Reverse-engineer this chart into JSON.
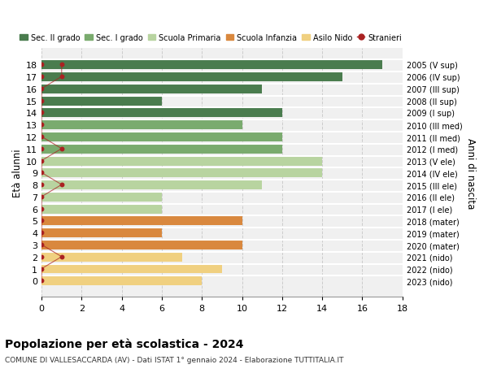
{
  "ages": [
    18,
    17,
    16,
    15,
    14,
    13,
    12,
    11,
    10,
    9,
    8,
    7,
    6,
    5,
    4,
    3,
    2,
    1,
    0
  ],
  "years_labels": [
    "2005 (V sup)",
    "2006 (IV sup)",
    "2007 (III sup)",
    "2008 (II sup)",
    "2009 (I sup)",
    "2010 (III med)",
    "2011 (II med)",
    "2012 (I med)",
    "2013 (V ele)",
    "2014 (IV ele)",
    "2015 (III ele)",
    "2016 (II ele)",
    "2017 (I ele)",
    "2018 (mater)",
    "2019 (mater)",
    "2020 (mater)",
    "2021 (nido)",
    "2022 (nido)",
    "2023 (nido)"
  ],
  "bar_values": [
    17,
    15,
    11,
    6,
    12,
    10,
    12,
    12,
    14,
    14,
    11,
    6,
    6,
    10,
    6,
    10,
    7,
    9,
    8
  ],
  "bar_colors": [
    "#4a7c4e",
    "#4a7c4e",
    "#4a7c4e",
    "#4a7c4e",
    "#4a7c4e",
    "#7aab6e",
    "#7aab6e",
    "#7aab6e",
    "#b8d4a0",
    "#b8d4a0",
    "#b8d4a0",
    "#b8d4a0",
    "#b8d4a0",
    "#d9883e",
    "#d9883e",
    "#d9883e",
    "#f0d080",
    "#f0d080",
    "#f0d080"
  ],
  "stranieri_x": [
    0,
    0,
    0,
    0,
    0,
    0,
    0,
    0,
    0,
    0,
    0,
    0,
    0,
    0,
    0,
    0,
    0,
    0,
    0
  ],
  "stranieri_highlighted": [
    18,
    17,
    11,
    8,
    2
  ],
  "stranieri_highlight_x": [
    1,
    1,
    1,
    1,
    1
  ],
  "title": "Popolazione per età scolastica - 2024",
  "subtitle": "COMUNE DI VALLESACCARDA (AV) - Dati ISTAT 1° gennaio 2024 - Elaborazione TUTTITALIA.IT",
  "ylabel": "Età alunni",
  "y2label": "Anni di nascita",
  "xlim": [
    0,
    18
  ],
  "xticks": [
    0,
    2,
    4,
    6,
    8,
    10,
    12,
    14,
    16,
    18
  ],
  "legend_items": [
    {
      "label": "Sec. II grado",
      "color": "#4a7c4e"
    },
    {
      "label": "Sec. I grado",
      "color": "#7aab6e"
    },
    {
      "label": "Scuola Primaria",
      "color": "#b8d4a0"
    },
    {
      "label": "Scuola Infanzia",
      "color": "#d9883e"
    },
    {
      "label": "Asilo Nido",
      "color": "#f0d080"
    },
    {
      "label": "Stranieri",
      "color": "#aa2222"
    }
  ],
  "bar_height": 0.8,
  "grid_color": "#cccccc",
  "bg_color": "#ffffff",
  "plot_bg_color": "#f0f0f0"
}
